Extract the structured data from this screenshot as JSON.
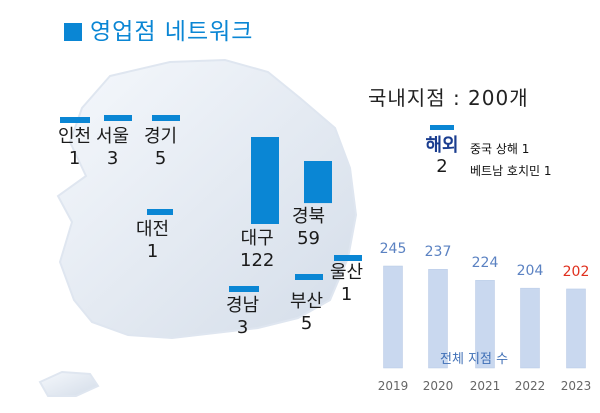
{
  "title": "영업점 네트워크",
  "domestic_total_label": "국내지점 : 200개",
  "colors": {
    "accent": "#0a86d4",
    "history_bar": "#c9d8ef",
    "history_label": "#5b82c2",
    "highlight": "#e0301e"
  },
  "overseas": {
    "name": "해외",
    "count": "2",
    "items": [
      "중국 상해 1",
      "베트남 호치민 1"
    ]
  },
  "chart_data": [
    {
      "type": "bar",
      "categories": [
        "인천",
        "서울",
        "경기",
        "대전",
        "대구",
        "경북",
        "경남",
        "부산",
        "울산"
      ],
      "values": [
        1,
        3,
        5,
        1,
        122,
        59,
        3,
        5,
        1
      ],
      "xlabel": "",
      "ylabel": ""
    },
    {
      "type": "bar",
      "categories": [
        "2019",
        "2020",
        "2021",
        "2022",
        "2023"
      ],
      "values": [
        245,
        237,
        224,
        204,
        202
      ],
      "highlight_category": "2023",
      "caption": "전체 지점 수",
      "xlabel": "",
      "ylabel": ""
    }
  ]
}
